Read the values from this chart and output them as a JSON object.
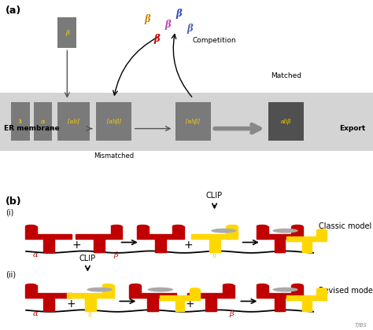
{
  "fig_width": 4.74,
  "fig_height": 4.2,
  "dpi": 100,
  "bg_top": "#e8e8e8",
  "bg_bottom": "#c8e0e0",
  "panel_a_label": "(a)",
  "panel_b_label": "(b)",
  "er_membrane_label": "ER membrane",
  "export_label": "Export",
  "mismatched_label": "Mismatched",
  "matched_label": "Matched",
  "competition_label": "Competition",
  "classic_model_label": "Classic model",
  "revised_model_label": "Revised model",
  "clip_label": "CLIP",
  "box_color": "#7a7a7a",
  "box_color_dark": "#505050",
  "yellow": "#FFD700",
  "red": "#C00000",
  "gray_clip": "#aaaaaa",
  "beta_colors": [
    "#cc8800",
    "#bb44bb",
    "#cc0000",
    "#3344bb",
    "#5566aa"
  ],
  "watermark": "T/BS",
  "alpha_label": "α",
  "beta_label": "β",
  "box_text_color": "#FFD700"
}
